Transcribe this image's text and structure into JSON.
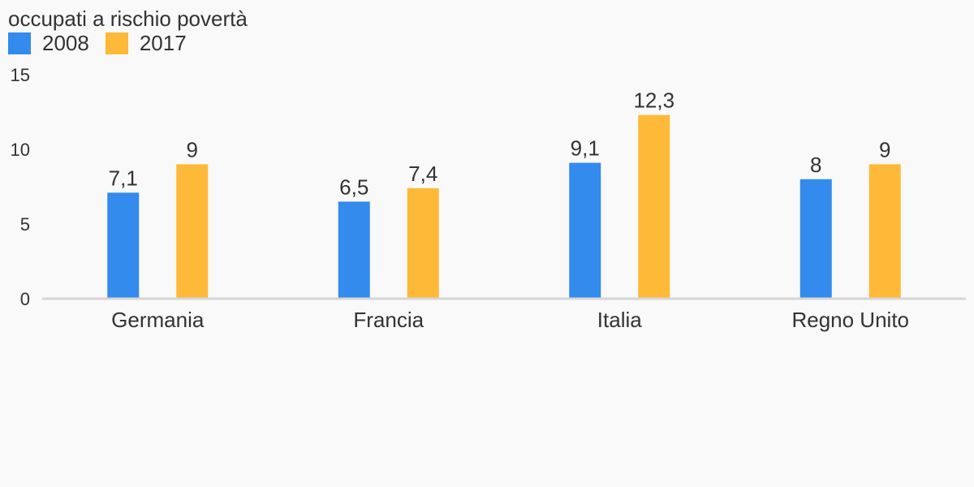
{
  "chart_data": {
    "type": "bar",
    "title": "occupati a rischio povertà",
    "categories": [
      "Germania",
      "Francia",
      "Italia",
      "Regno Unito"
    ],
    "series": [
      {
        "name": "2008",
        "color": "#328bed",
        "values": [
          7.1,
          6.5,
          9.1,
          8
        ],
        "labels": [
          "7,1",
          "6,5",
          "9,1",
          "8"
        ]
      },
      {
        "name": "2017",
        "color": "#feb938",
        "values": [
          9,
          7.4,
          12.3,
          9
        ],
        "labels": [
          "9",
          "7,4",
          "12,3",
          "9"
        ]
      }
    ],
    "ylim": [
      0,
      15
    ],
    "yticks": [
      "0",
      "5",
      "10",
      "15"
    ],
    "ytick_values": [
      0,
      5,
      10,
      15
    ],
    "grid": false,
    "legend_position": "top-left",
    "axis_color": "#d6d6d6"
  }
}
